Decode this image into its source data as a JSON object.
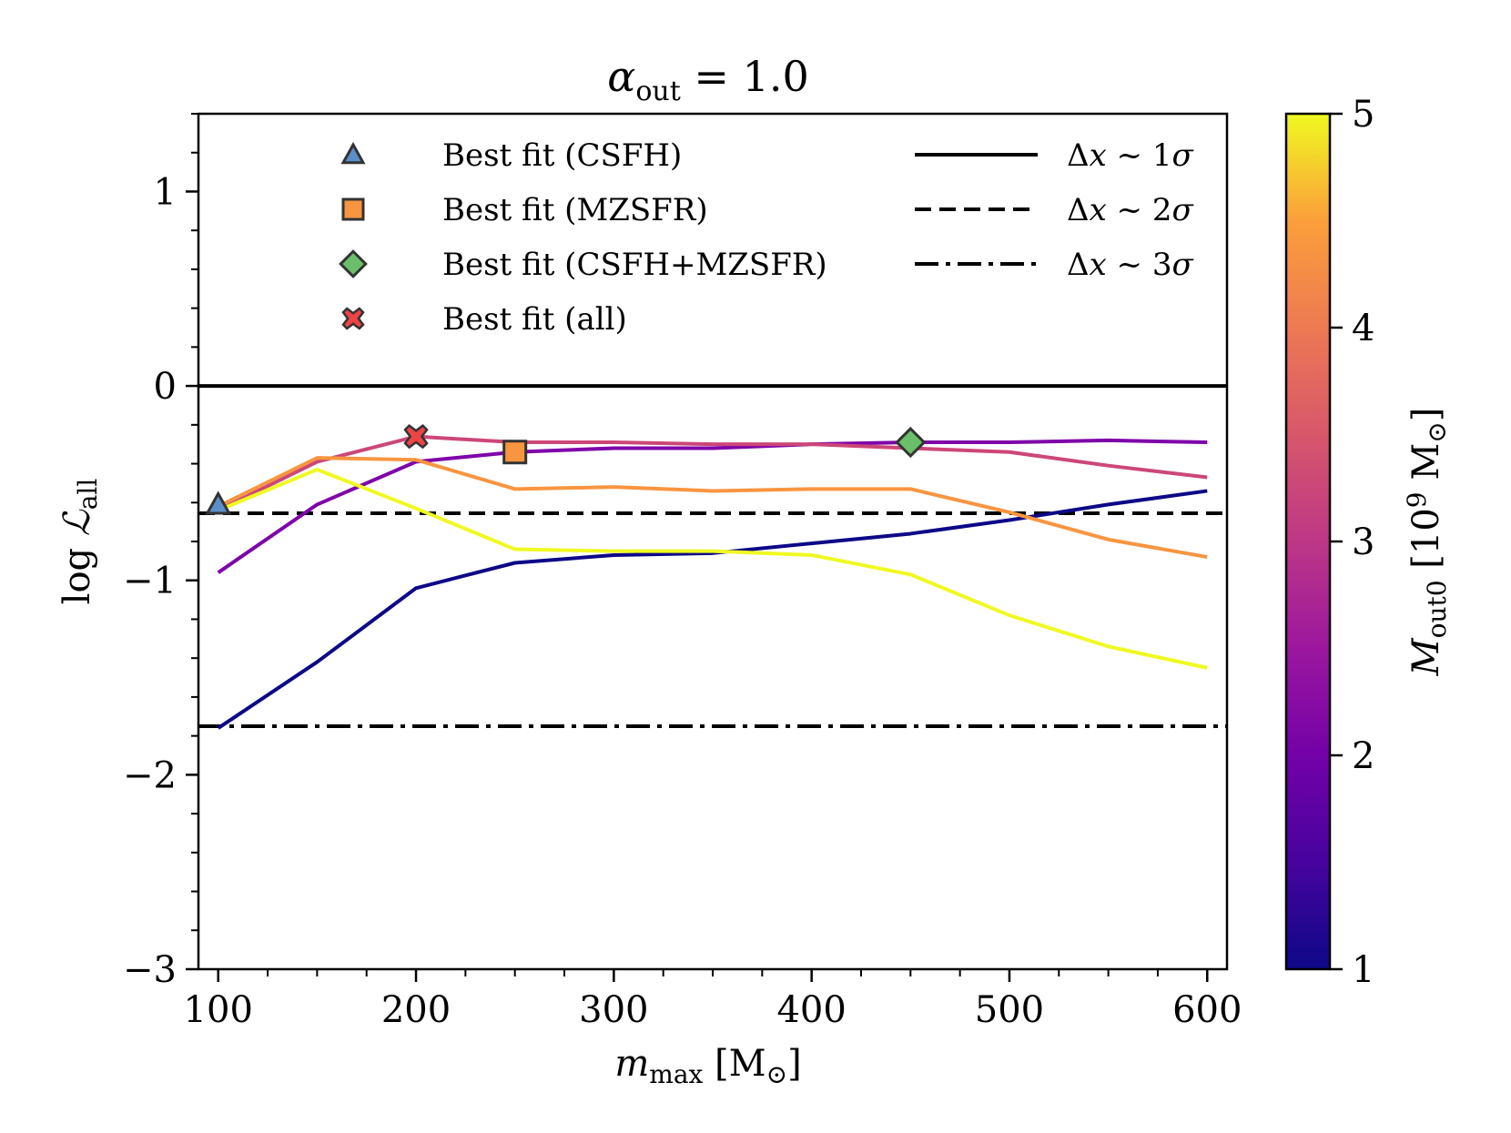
{
  "chart_data": {
    "type": "line",
    "title": {
      "symbol": "α",
      "sub": "out",
      "rest": " = 1.0"
    },
    "xlabel": {
      "symbol": "m",
      "sub": "max",
      "rest": " [M",
      "sun": "⊙",
      "close": "]"
    },
    "ylabel": {
      "pre": "log ",
      "symbol": "ℒ",
      "sub": "all"
    },
    "colorbar_label": {
      "symbol": "M",
      "sub": "out0",
      "rest": " [10",
      "sup": "9",
      "rest2": " M",
      "sun": "⊙",
      "close": "]"
    },
    "xlim": [
      90,
      610
    ],
    "ylim": [
      -3,
      1.4
    ],
    "xticks": [
      100,
      200,
      300,
      400,
      500,
      600
    ],
    "xtick_labels": [
      "100",
      "200",
      "300",
      "400",
      "500",
      "600"
    ],
    "yticks": [
      -3,
      -2,
      -1,
      0,
      1
    ],
    "ytick_labels": [
      "−3",
      "−2",
      "−1",
      "0",
      "1"
    ],
    "colorbar_range": [
      1,
      5
    ],
    "colorbar_ticks": [
      1,
      2,
      3,
      4,
      5
    ],
    "colorbar_tick_labels": [
      "1",
      "2",
      "3",
      "4",
      "5"
    ],
    "x": [
      100,
      150,
      200,
      250,
      300,
      350,
      400,
      450,
      500,
      550,
      600
    ],
    "series": [
      {
        "name": "M_out0 = 1",
        "color": "#0d0887",
        "values": [
          -1.76,
          -1.42,
          -1.04,
          -0.91,
          -0.87,
          -0.86,
          -0.81,
          -0.76,
          -0.69,
          -0.61,
          -0.54
        ]
      },
      {
        "name": "M_out0 = 2",
        "color": "#7e03a8",
        "values": [
          -0.96,
          -0.61,
          -0.39,
          -0.34,
          -0.32,
          -0.32,
          -0.3,
          -0.29,
          -0.29,
          -0.28,
          -0.29
        ]
      },
      {
        "name": "M_out0 = 3",
        "color": "#cc4778",
        "values": [
          -0.64,
          -0.39,
          -0.26,
          -0.29,
          -0.29,
          -0.3,
          -0.3,
          -0.32,
          -0.34,
          -0.41,
          -0.47
        ]
      },
      {
        "name": "M_out0 = 4",
        "color": "#f89540",
        "values": [
          -0.62,
          -0.37,
          -0.38,
          -0.53,
          -0.52,
          -0.54,
          -0.53,
          -0.53,
          -0.65,
          -0.79,
          -0.88
        ]
      },
      {
        "name": "M_out0 = 5",
        "color": "#f0f921",
        "values": [
          -0.64,
          -0.43,
          -0.63,
          -0.84,
          -0.85,
          -0.85,
          -0.87,
          -0.97,
          -1.18,
          -1.34,
          -1.45
        ]
      }
    ],
    "reference_lines": [
      {
        "name": "1 sigma",
        "y": 0.0,
        "style": "solid"
      },
      {
        "name": "2 sigma",
        "y": -0.655,
        "style": "dashed"
      },
      {
        "name": "3 sigma",
        "y": -1.75,
        "style": "dashdot"
      }
    ],
    "markers": [
      {
        "label": "Best fit (CSFH)",
        "shape": "triangle",
        "color": "#5b8fc7",
        "x": 100,
        "y": -0.61
      },
      {
        "label": "Best fit (MZSFR)",
        "shape": "square",
        "color": "#f89540",
        "x": 250,
        "y": -0.34
      },
      {
        "label": "Best fit (CSFH+MZSFR)",
        "shape": "diamond",
        "color": "#6bbf6b",
        "x": 450,
        "y": -0.29
      },
      {
        "label": "Best fit (all)",
        "shape": "cross",
        "color": "#ee4444",
        "x": 200,
        "y": -0.26
      }
    ],
    "legend": {
      "markers": [
        "Best fit (CSFH)",
        "Best fit (MZSFR)",
        "Best fit (CSFH+MZSFR)",
        "Best fit (all)"
      ],
      "lines": [
        {
          "delta": "Δ",
          "var": "x",
          "tilde": " ~ ",
          "num": "1",
          "sigma": "σ"
        },
        {
          "delta": "Δ",
          "var": "x",
          "tilde": " ~ ",
          "num": "2",
          "sigma": "σ"
        },
        {
          "delta": "Δ",
          "var": "x",
          "tilde": " ~ ",
          "num": "3",
          "sigma": "σ"
        }
      ],
      "placement": "top"
    }
  }
}
